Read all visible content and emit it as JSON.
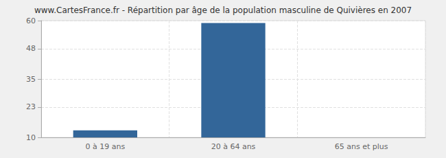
{
  "chart_data": {
    "type": "bar",
    "title": "www.CartesFrance.fr - Répartition par âge de la population masculine de Quivières en 2007",
    "categories": [
      "0 à 19 ans",
      "20 à 64 ans",
      "65 ans et plus"
    ],
    "values": [
      13,
      59,
      10
    ],
    "color": "#336699",
    "ylim": [
      10,
      60
    ],
    "yticks": [
      10,
      23,
      35,
      48,
      60
    ],
    "grid": true
  }
}
